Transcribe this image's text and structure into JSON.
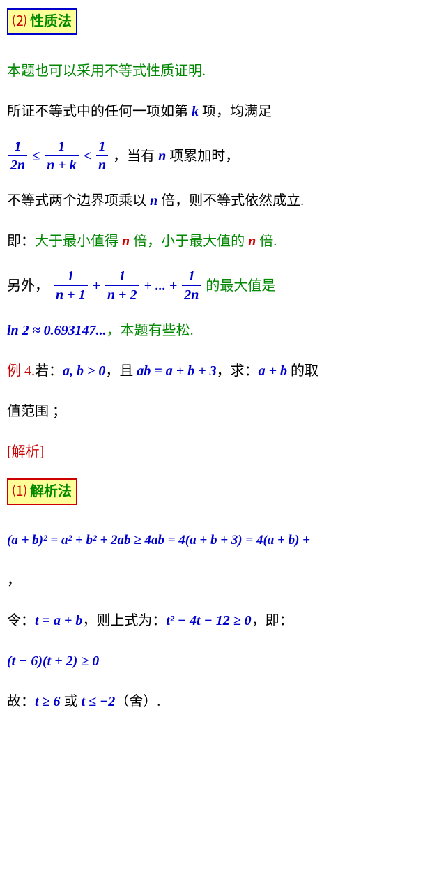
{
  "box1": {
    "num": "⑵",
    "title": "性质法",
    "border_color": "#0000cc"
  },
  "p1": "本题也可以采用不等式性质证明.",
  "p2_a": "所证不等式中的任何一项如第 ",
  "p2_k": "k",
  "p2_b": " 项，均满足",
  "ineq1": {
    "f1_num": "1",
    "f1_den": "2n",
    "le": " ≤ ",
    "f2_num": "1",
    "f2_den": "n + k",
    "lt": " < ",
    "f3_num": "1",
    "f3_den": "n"
  },
  "p3_a": "，当有 ",
  "p3_n": "n",
  "p3_b": " 项累加时，",
  "p4_a": "不等式两个边界项乘以 ",
  "p4_n": "n",
  "p4_b": " 倍，则不等式依然成立.",
  "p5_a": "即：",
  "p5_b": "大于最小值得 ",
  "p5_n1": "n",
  "p5_c": " 倍，小于最大值的 ",
  "p5_n2": "n",
  "p5_d": " 倍.",
  "p6_a": "另外，",
  "series": {
    "f1_num": "1",
    "f1_den": "n + 1",
    "plus1": " + ",
    "f2_num": "1",
    "f2_den": "n + 2",
    "plus2": " + ... + ",
    "f3_num": "1",
    "f3_den": "2n"
  },
  "p6_b": " 的最大值是",
  "p7_a": "ln 2 ≈ 0.693147...",
  "p7_b": "，本题有些松.",
  "ex4_a": "例 4.",
  "ex4_b": "若：",
  "ex4_c": "a, b > 0",
  "ex4_d": "，且 ",
  "ex4_e": "ab = a + b + 3",
  "ex4_f": "，求：",
  "ex4_g": "a + b",
  "ex4_h": " 的取",
  "ex4_i": "值范围  ；",
  "jiexi": "[解析]",
  "box2": {
    "num": "⑴",
    "title": "解析法",
    "border_color": "#cc0000"
  },
  "eq1": "(a + b)² = a² + b² + 2ab ≥ 4ab = 4(a + b + 3) = 4(a + b) +",
  "comma": "，",
  "p8_a": "令：",
  "p8_b": "t = a + b",
  "p8_c": "，则上式为：",
  "p8_d": "t² − 4t − 12 ≥ 0",
  "p8_e": "，即：",
  "eq2": "(t − 6)(t + 2) ≥ 0",
  "p9_a": "故：",
  "p9_b": "t ≥ 6",
  "p9_c": " 或 ",
  "p9_d": "t ≤ −2",
  "p9_e": "（舍）.",
  "colors": {
    "blue": "#0000cc",
    "red": "#cc0000",
    "green": "#008800",
    "black": "#000000",
    "box_bg": "#ffff99",
    "page_bg": "#ffffff"
  }
}
